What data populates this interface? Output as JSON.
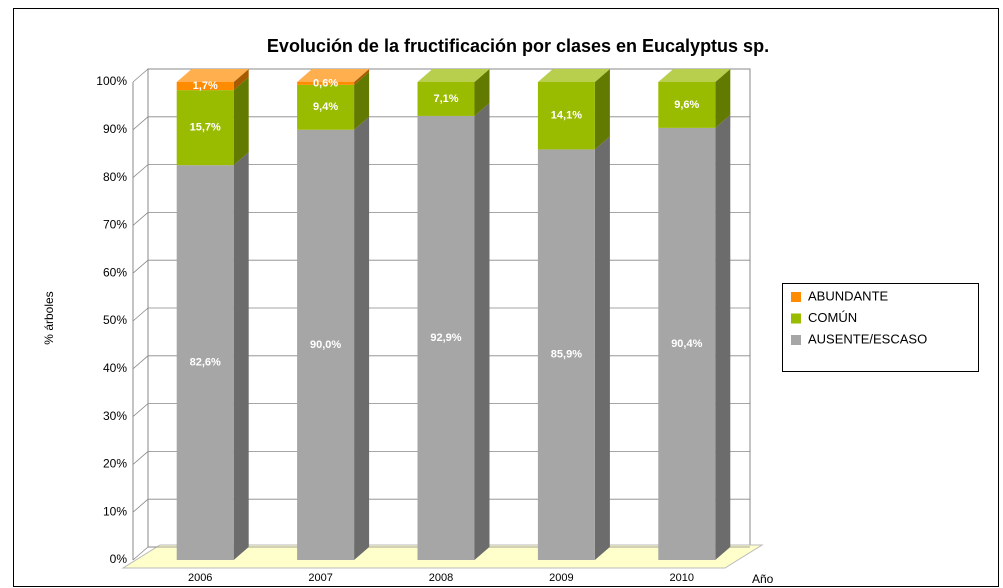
{
  "chart_data": {
    "type": "bar3d_stacked",
    "title": "Evolución de la fructificación por clases en Eucalyptus sp.",
    "y_label": "% árboles",
    "x_label": "Año",
    "categories": [
      "2006",
      "2007",
      "2008",
      "2009",
      "2010"
    ],
    "series": [
      {
        "name": "AUSENTE/ESCASO",
        "color": "#a6a6a6",
        "values": [
          82.6,
          90.0,
          92.9,
          85.9,
          90.4
        ],
        "value_labels": [
          "82,6%",
          "90,0%",
          "92,9%",
          "85,9%",
          "90,4%"
        ]
      },
      {
        "name": "COMÚN",
        "color": "#99bb00",
        "values": [
          15.7,
          9.4,
          7.1,
          14.1,
          9.6
        ],
        "value_labels": [
          "15,7%",
          "9,4%",
          "7,1%",
          "14,1%",
          "9,6%"
        ]
      },
      {
        "name": "ABUNDANTE",
        "color": "#ff8c00",
        "values": [
          1.7,
          0.6,
          0,
          0,
          0
        ],
        "value_labels": [
          "1,7%",
          "0,6%",
          null,
          null,
          null
        ]
      }
    ],
    "ylim": [
      0,
      100
    ],
    "yticks": [
      {
        "value": 0,
        "label": "0%"
      },
      {
        "value": 10,
        "label": "10%"
      },
      {
        "value": 20,
        "label": "20%"
      },
      {
        "value": 30,
        "label": "30%"
      },
      {
        "value": 40,
        "label": "40%"
      },
      {
        "value": 50,
        "label": "50%"
      },
      {
        "value": 60,
        "label": "60%"
      },
      {
        "value": 70,
        "label": "70%"
      },
      {
        "value": 80,
        "label": "80%"
      },
      {
        "value": 90,
        "label": "90%"
      },
      {
        "value": 100,
        "label": "100%"
      }
    ],
    "grid": true,
    "legend": "right"
  }
}
